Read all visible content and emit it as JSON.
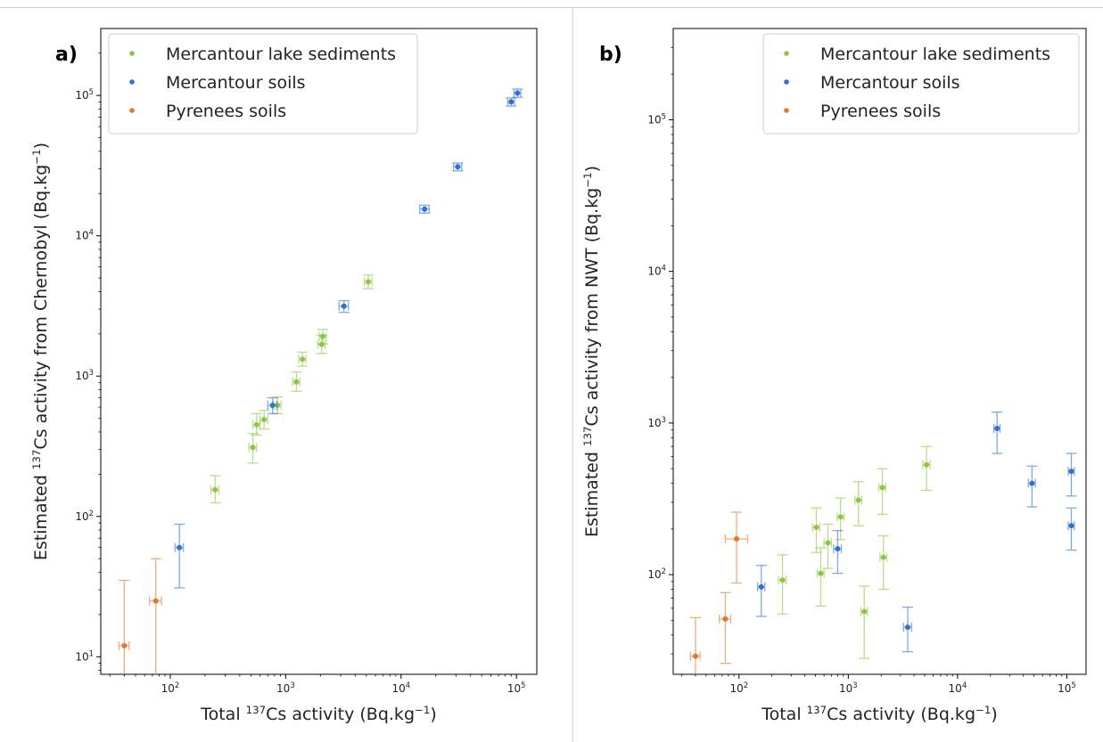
{
  "figure": {
    "divider_color": "#cfcfcf"
  },
  "colors": {
    "lake": "#8dc63f",
    "merc_soil": "#2e6fd8",
    "pyr_soil": "#e8742a"
  },
  "chart_data": [
    {
      "type": "scatter",
      "panel_label": "a)",
      "xlabel": {
        "pre": "Total ",
        "sup": "137",
        "post": "Cs activity (Bq.kg",
        "sup2": "−1",
        "end": ")"
      },
      "ylabel": {
        "pre": "Estimated ",
        "sup": "137",
        "post": "Cs activity from Chernobyl (Bq.kg",
        "sup2": "−1",
        "end": ")"
      },
      "xscale": "log",
      "yscale": "log",
      "xlim": [
        25,
        150000
      ],
      "ylim": [
        7.5,
        300000
      ],
      "xticks": [
        {
          "base": "10",
          "exp": "2",
          "value": 100
        },
        {
          "base": "10",
          "exp": "3",
          "value": 1000
        },
        {
          "base": "10",
          "exp": "4",
          "value": 10000
        },
        {
          "base": "10",
          "exp": "5",
          "value": 100000
        }
      ],
      "yticks": [
        {
          "base": "10",
          "exp": "1",
          "value": 10
        },
        {
          "base": "10",
          "exp": "2",
          "value": 100
        },
        {
          "base": "10",
          "exp": "3",
          "value": 1000
        },
        {
          "base": "10",
          "exp": "4",
          "value": 10000
        },
        {
          "base": "10",
          "exp": "5",
          "value": 100000
        }
      ],
      "legend_position": "top-left",
      "series": [
        {
          "name": "Mercantour lake sediments",
          "color_key": "lake",
          "points": [
            {
              "x": 245,
              "y": 155,
              "xerr": [
                225,
                265
              ],
              "yerr": [
                125,
                195
              ]
            },
            {
              "x": 520,
              "y": 310,
              "xerr": [
                480,
                560
              ],
              "yerr": [
                240,
                390
              ]
            },
            {
              "x": 560,
              "y": 450,
              "xerr": [
                520,
                600
              ],
              "yerr": [
                380,
                540
              ]
            },
            {
              "x": 650,
              "y": 490,
              "xerr": [
                600,
                700
              ],
              "yerr": [
                420,
                570
              ]
            },
            {
              "x": 850,
              "y": 620,
              "xerr": [
                790,
                910
              ],
              "yerr": [
                540,
                710
              ]
            },
            {
              "x": 1240,
              "y": 910,
              "xerr": [
                1150,
                1330
              ],
              "yerr": [
                780,
                1070
              ]
            },
            {
              "x": 1400,
              "y": 1320,
              "xerr": [
                1300,
                1500
              ],
              "yerr": [
                1180,
                1480
              ]
            },
            {
              "x": 2050,
              "y": 1680,
              "xerr": [
                1900,
                2200
              ],
              "yerr": [
                1450,
                1950
              ]
            },
            {
              "x": 2100,
              "y": 1920,
              "xerr": [
                1950,
                2250
              ],
              "yerr": [
                1700,
                2150
              ]
            },
            {
              "x": 5200,
              "y": 4700,
              "xerr": [
                4800,
                5600
              ],
              "yerr": [
                4200,
                5250
              ]
            }
          ]
        },
        {
          "name": "Mercantour soils",
          "color_key": "merc_soil",
          "points": [
            {
              "x": 120,
              "y": 60,
              "xerr": [
                110,
                130
              ],
              "yerr": [
                31,
                88
              ]
            },
            {
              "x": 770,
              "y": 620,
              "xerr": [
                700,
                840
              ],
              "yerr": [
                540,
                700
              ]
            },
            {
              "x": 3200,
              "y": 3150,
              "xerr": [
                2900,
                3500
              ],
              "yerr": [
                2850,
                3450
              ]
            },
            {
              "x": 16000,
              "y": 15500,
              "xerr": [
                14500,
                17500
              ],
              "yerr": [
                14500,
                16500
              ]
            },
            {
              "x": 31000,
              "y": 31000,
              "xerr": [
                28500,
                33500
              ],
              "yerr": [
                29000,
                33000
              ]
            },
            {
              "x": 90000,
              "y": 90000,
              "xerr": [
                84000,
                96000
              ],
              "yerr": [
                84000,
                96000
              ]
            },
            {
              "x": 102000,
              "y": 104000,
              "xerr": [
                95000,
                109000
              ],
              "yerr": [
                97000,
                111000
              ]
            }
          ]
        },
        {
          "name": "Pyrenees soils",
          "color_key": "pyr_soil",
          "points": [
            {
              "x": 40,
              "y": 12,
              "xerr": [
                36,
                44
              ],
              "yerr": [
                0,
                35
              ]
            },
            {
              "x": 75,
              "y": 25,
              "xerr": [
                66,
                84
              ],
              "yerr": [
                0,
                50
              ]
            }
          ]
        }
      ]
    },
    {
      "type": "scatter",
      "panel_label": "b)",
      "xlabel": {
        "pre": "Total ",
        "sup": "137",
        "post": "Cs activity (Bq.kg",
        "sup2": "−1",
        "end": ")"
      },
      "ylabel": {
        "pre": "Estimated ",
        "sup": "137",
        "post": "Cs activity from NWT (Bq.kg",
        "sup2": "−1",
        "end": ")"
      },
      "xscale": "log",
      "yscale": "log",
      "xlim": [
        25,
        150000
      ],
      "ylim": [
        22,
        400000
      ],
      "xticks": [
        {
          "base": "10",
          "exp": "2",
          "value": 100
        },
        {
          "base": "10",
          "exp": "3",
          "value": 1000
        },
        {
          "base": "10",
          "exp": "4",
          "value": 10000
        },
        {
          "base": "10",
          "exp": "5",
          "value": 100000
        }
      ],
      "yticks": [
        {
          "base": "10",
          "exp": "2",
          "value": 100
        },
        {
          "base": "10",
          "exp": "3",
          "value": 1000
        },
        {
          "base": "10",
          "exp": "4",
          "value": 10000
        },
        {
          "base": "10",
          "exp": "5",
          "value": 100000
        }
      ],
      "legend_position": "top-right",
      "series": [
        {
          "name": "Mercantour lake sediments",
          "color_key": "lake",
          "points": [
            {
              "x": 250,
              "y": 92,
              "xerr": [
                230,
                270
              ],
              "yerr": [
                55,
                135
              ]
            },
            {
              "x": 510,
              "y": 205,
              "xerr": [
                470,
                550
              ],
              "yerr": [
                140,
                275
              ]
            },
            {
              "x": 560,
              "y": 102,
              "xerr": [
                520,
                600
              ],
              "yerr": [
                62,
                150
              ]
            },
            {
              "x": 650,
              "y": 162,
              "xerr": [
                600,
                700
              ],
              "yerr": [
                110,
                215
              ]
            },
            {
              "x": 850,
              "y": 240,
              "xerr": [
                790,
                910
              ],
              "yerr": [
                170,
                320
              ]
            },
            {
              "x": 1240,
              "y": 310,
              "xerr": [
                1150,
                1330
              ],
              "yerr": [
                210,
                410
              ]
            },
            {
              "x": 1400,
              "y": 57,
              "xerr": [
                1300,
                1500
              ],
              "yerr": [
                28,
                84
              ]
            },
            {
              "x": 2050,
              "y": 375,
              "xerr": [
                1900,
                2200
              ],
              "yerr": [
                250,
                500
              ]
            },
            {
              "x": 2100,
              "y": 130,
              "xerr": [
                1950,
                2250
              ],
              "yerr": [
                80,
                180
              ]
            },
            {
              "x": 5200,
              "y": 530,
              "xerr": [
                4800,
                5600
              ],
              "yerr": [
                360,
                700
              ]
            }
          ]
        },
        {
          "name": "Mercantour soils",
          "color_key": "merc_soil",
          "points": [
            {
              "x": 160,
              "y": 83,
              "xerr": [
                148,
                172
              ],
              "yerr": [
                53,
                115
              ]
            },
            {
              "x": 800,
              "y": 148,
              "xerr": [
                735,
                865
              ],
              "yerr": [
                102,
                195
              ]
            },
            {
              "x": 3500,
              "y": 45,
              "xerr": [
                3200,
                3800
              ],
              "yerr": [
                31,
                61
              ]
            },
            {
              "x": 23000,
              "y": 920,
              "xerr": [
                21500,
                24500
              ],
              "yerr": [
                630,
                1180
              ]
            },
            {
              "x": 48000,
              "y": 400,
              "xerr": [
                44500,
                51500
              ],
              "yerr": [
                280,
                520
              ]
            },
            {
              "x": 110000,
              "y": 480,
              "xerr": [
                103000,
                117000
              ],
              "yerr": [
                330,
                630
              ]
            },
            {
              "x": 110000,
              "y": 210,
              "xerr": [
                103000,
                117000
              ],
              "yerr": [
                145,
                275
              ]
            }
          ]
        },
        {
          "name": "Pyrenees soils",
          "color_key": "pyr_soil",
          "points": [
            {
              "x": 40,
              "y": 29,
              "xerr": [
                36,
                44
              ],
              "yerr": [
                0,
                52
              ]
            },
            {
              "x": 75,
              "y": 51,
              "xerr": [
                66,
                84
              ],
              "yerr": [
                26,
                76
              ]
            },
            {
              "x": 95,
              "y": 172,
              "xerr": [
                75,
                120
              ],
              "yerr": [
                88,
                258
              ]
            }
          ]
        }
      ]
    }
  ]
}
